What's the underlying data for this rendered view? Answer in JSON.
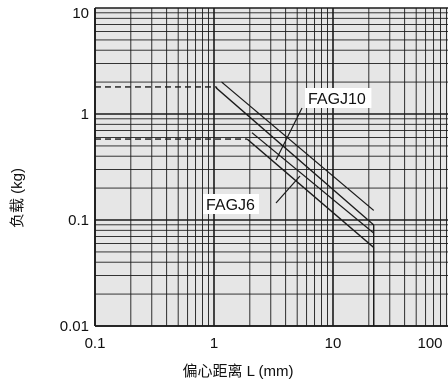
{
  "chart_data": {
    "type": "line",
    "title": "",
    "xlabel": "偏心距离 L (mm)",
    "ylabel": "负载 (kg)",
    "xscale": "log",
    "yscale": "log",
    "xlim": [
      0.1,
      100
    ],
    "ylim": [
      0.01,
      10
    ],
    "grid": true,
    "x_ticks": [
      "0.1",
      "1",
      "10",
      "100"
    ],
    "y_ticks": [
      "0.01",
      "0.1",
      "1",
      "10"
    ],
    "colors": {
      "plot_bg": "#e6e6e6",
      "grid": "#1a1a1a",
      "line": "#1a1a1a"
    },
    "series": [
      {
        "name": "FAGJ10",
        "points": [
          [
            0.1,
            1.8
          ],
          [
            1.05,
            1.8
          ],
          [
            1.05,
            1.75
          ],
          [
            22,
            0.09
          ],
          [
            22,
            0.01
          ]
        ],
        "dashed_until_x": 1.05
      },
      {
        "name": "FAGJ6",
        "points": [
          [
            0.1,
            0.58
          ],
          [
            1.9,
            0.58
          ],
          [
            22,
            0.055
          ],
          [
            22,
            0.01
          ]
        ],
        "dashed_until_x": 1.9
      }
    ],
    "annotations": [
      {
        "text": "FAGJ10",
        "target_series": "FAGJ10"
      },
      {
        "text": "FAGJ6",
        "target_series": "FAGJ6"
      }
    ]
  }
}
